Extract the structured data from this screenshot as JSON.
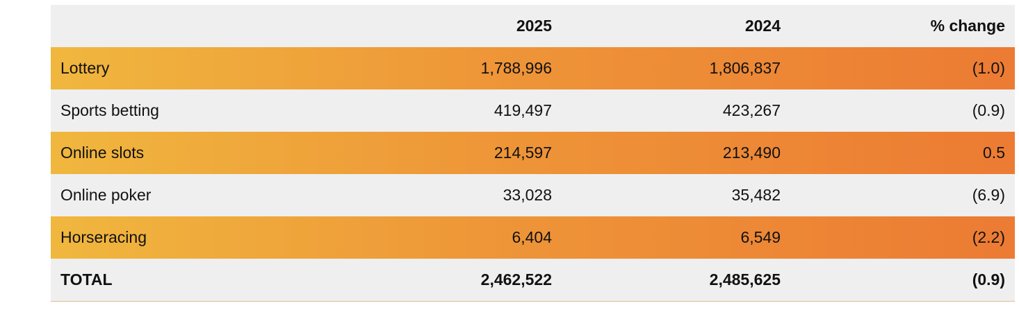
{
  "table": {
    "headers": [
      "",
      "2025",
      "2024",
      "% change"
    ],
    "rows": [
      {
        "label": "Lottery",
        "y2025": "1,788,996",
        "y2024": "1,806,837",
        "change": "(1.0)"
      },
      {
        "label": "Sports betting",
        "y2025": "419,497",
        "y2024": "423,267",
        "change": "(0.9)"
      },
      {
        "label": "Online slots",
        "y2025": "214,597",
        "y2024": "213,490",
        "change": "0.5"
      },
      {
        "label": "Online poker",
        "y2025": "33,028",
        "y2024": "35,482",
        "change": "(6.9)"
      },
      {
        "label": "Horseracing",
        "y2025": "6,404",
        "y2024": "6,549",
        "change": "(2.2)"
      }
    ],
    "total": {
      "label": "TOTAL",
      "y2025": "2,462,522",
      "y2024": "2,485,625",
      "change": "(0.9)"
    }
  },
  "colors": {
    "accent_start": "#f0b73e",
    "accent_end": "#ec7b33",
    "row_gray": "#efefef"
  }
}
